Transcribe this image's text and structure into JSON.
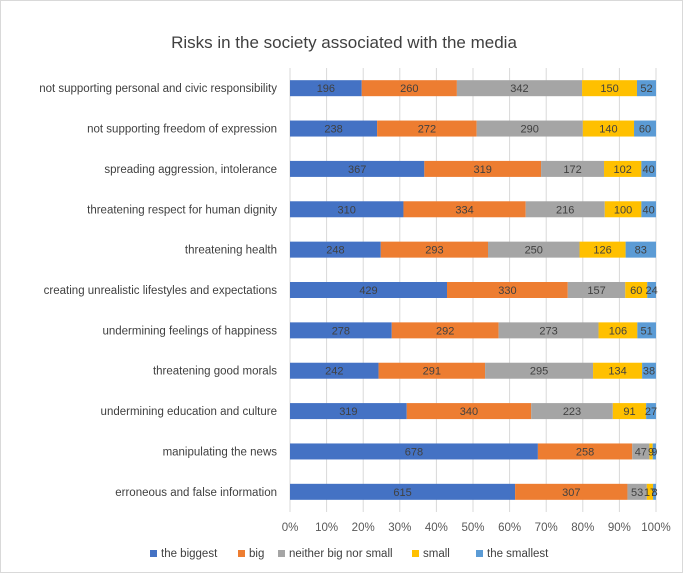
{
  "chart_data": {
    "type": "bar",
    "orientation": "horizontal",
    "stacked": "percent",
    "title": "Risks in the society associated with the media",
    "categories": [
      "not supporting personal and civic responsibility",
      "not supporting freedom of expression",
      "spreading aggression, intolerance",
      "threatening respect for human dignity",
      "threatening health",
      "creating unrealistic lifestyles and expectations",
      "undermining feelings of happiness",
      "threatening good morals",
      "undermining education and culture",
      "manipulating the news",
      "erroneous and false information"
    ],
    "series": [
      {
        "name": "the biggest",
        "color": "#4472c4",
        "label_color": "#404040",
        "values": [
          196,
          238,
          367,
          310,
          248,
          429,
          278,
          242,
          319,
          678,
          615
        ]
      },
      {
        "name": "big",
        "color": "#ed7d31",
        "label_color": "#404040",
        "values": [
          260,
          272,
          319,
          334,
          293,
          330,
          292,
          291,
          340,
          258,
          307
        ]
      },
      {
        "name": "neither big nor small",
        "color": "#a5a5a5",
        "label_color": "#404040",
        "values": [
          342,
          290,
          172,
          216,
          250,
          157,
          273,
          295,
          223,
          47,
          53
        ]
      },
      {
        "name": "small",
        "color": "#ffc000",
        "label_color": "#404040",
        "values": [
          150,
          140,
          102,
          100,
          126,
          60,
          106,
          134,
          91,
          9,
          17
        ]
      },
      {
        "name": "the smallest",
        "color": "#5b9bd5",
        "label_color": "#404040",
        "values": [
          52,
          60,
          40,
          40,
          83,
          24,
          51,
          38,
          27,
          9,
          8
        ]
      }
    ],
    "xaxis": {
      "range": [
        0,
        100
      ],
      "ticks": [
        "0%",
        "10%",
        "20%",
        "30%",
        "40%",
        "50%",
        "60%",
        "70%",
        "80%",
        "90%",
        "100%"
      ]
    },
    "grid": true,
    "gridline_color": "#d9d9d9",
    "legend_position": "bottom"
  }
}
